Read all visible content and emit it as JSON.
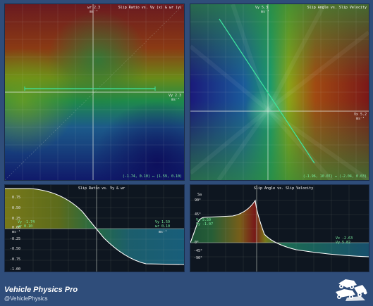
{
  "branding": {
    "title": "Vehicle Physics Pro",
    "handle": "@VehiclePhysics",
    "logo_icon": "car-crash-logo-icon"
  },
  "panels": {
    "slip_ratio_map": {
      "title": "Slip Ratio vs. Vy (x) & ωr (y)",
      "y_axis_label": "ωr 2.3",
      "y_axis_unit": "ms⁻¹",
      "x_axis_label": "Vy 2.3",
      "x_axis_unit": "ms⁻¹",
      "range_readout": "(-1.74, 0.10) ↔ (1.59, 0.10)"
    },
    "slip_angle_map": {
      "title": "Slip Angle vs. Slip Velocity",
      "y_axis_label": "Vy 5.3",
      "y_axis_unit": "ms⁻¹",
      "x_axis_label": "Vx 5.2",
      "x_axis_unit": "ms⁻¹",
      "range_readout": "(-1.96, 10.07) ↔ (-2.04, 0.03)"
    },
    "slip_ratio_curve": {
      "title": "Slip Ratio vs. Vy & ωr",
      "tick_labels": [
        "0.75",
        "0.50",
        "0.25",
        "0.00",
        "-0.25",
        "-0.50",
        "-0.75",
        "-1.00"
      ],
      "unit": "ms⁻¹",
      "left_readout": [
        "Vy -1.74",
        "ωr 0.10"
      ],
      "right_readout": [
        "Vy 1.59",
        "ωr 0.10"
      ],
      "x_unit_left": "ms⁻¹",
      "x_unit_right": "ms⁻¹"
    },
    "slip_angle_curve": {
      "title": "Slip Angle vs. Slip Velocity",
      "tick_labels": [
        "90°",
        "45°",
        "0°",
        "-45°",
        "-90°"
      ],
      "top_label": "Sa",
      "left_readout": [
        "Vx 5.50",
        "Vy -1.07"
      ],
      "right_readout": [
        "Vx -2.63",
        "Vy 5.82"
      ]
    }
  },
  "colors": {
    "background": "#2f4d7a",
    "grid": "#c8d2c8",
    "trace": "#3ee6a0",
    "curve": "#ffffff"
  }
}
